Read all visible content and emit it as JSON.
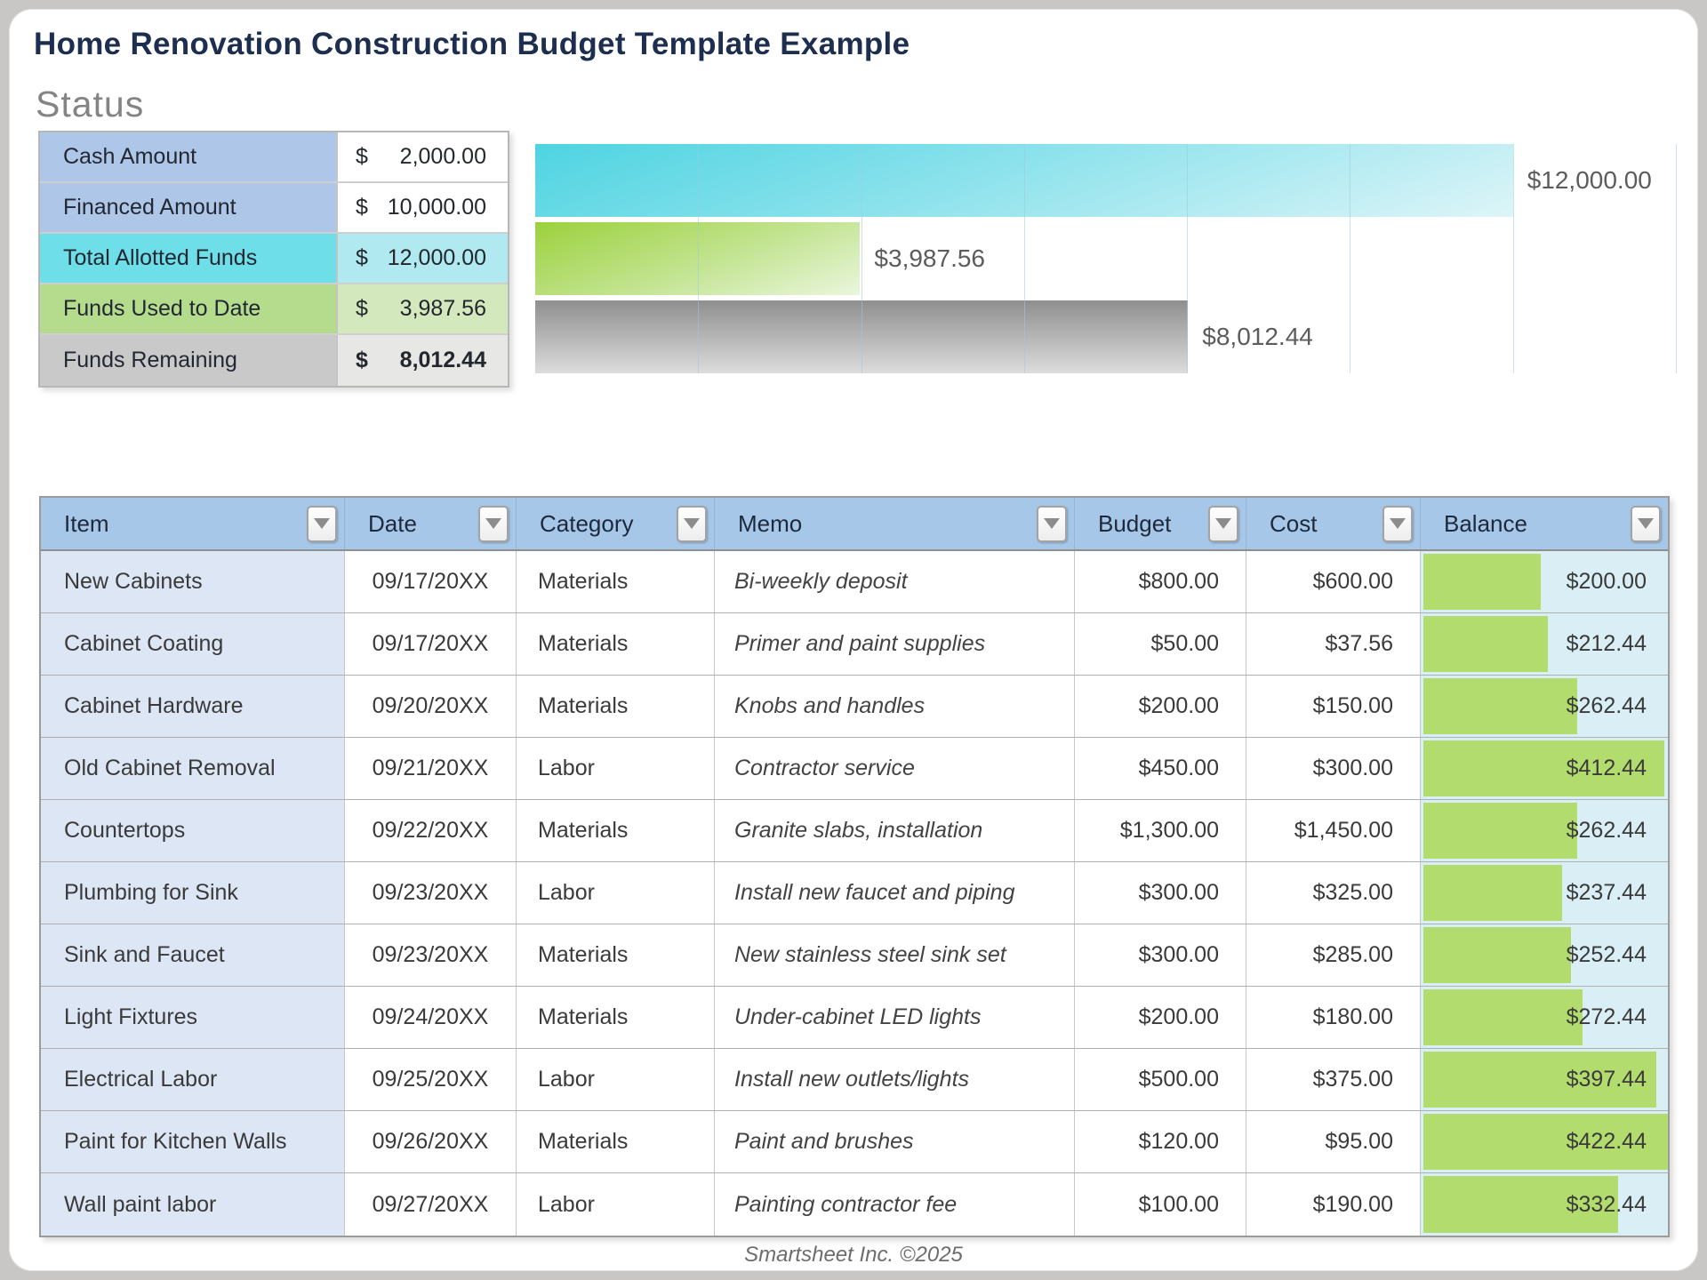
{
  "page": {
    "title": "Home Renovation Construction Budget Template Example",
    "footer": "Smartsheet Inc. ©2025"
  },
  "status": {
    "heading": "Status",
    "rows": [
      {
        "label": "Cash Amount",
        "currency": "$",
        "amount": "2,000.00"
      },
      {
        "label": "Financed Amount",
        "currency": "$",
        "amount": "10,000.00"
      },
      {
        "label": "Total Allotted Funds",
        "currency": "$",
        "amount": "12,000.00"
      },
      {
        "label": "Funds Used to Date",
        "currency": "$",
        "amount": "3,987.56"
      },
      {
        "label": "Funds Remaining",
        "currency": "$",
        "amount": "8,012.44"
      }
    ]
  },
  "chart_data": {
    "type": "bar",
    "orientation": "horizontal",
    "categories": [
      "Total Allotted Funds",
      "Funds Used to Date",
      "Funds Remaining"
    ],
    "values": [
      12000,
      3987.56,
      8012.44
    ],
    "labels": [
      "$12,000.00",
      "$3,987.56",
      "$8,012.44"
    ],
    "bar_colors": [
      "#4ed4e1",
      "#9cd13c",
      "#8f8f8f"
    ],
    "xlim": [
      0,
      14000
    ],
    "gridline_interval": 2000,
    "grid": true,
    "legend": false,
    "title": "",
    "xlabel": "",
    "ylabel": ""
  },
  "table": {
    "columns": [
      "Item",
      "Date",
      "Category",
      "Memo",
      "Budget",
      "Cost",
      "Balance"
    ],
    "rows": [
      {
        "item": "New Cabinets",
        "date": "09/17/20XX",
        "category": "Materials",
        "memo": "Bi-weekly deposit",
        "budget": "$800.00",
        "cost": "$600.00",
        "balance": "$200.00",
        "balance_value": 200.0
      },
      {
        "item": "Cabinet Coating",
        "date": "09/17/20XX",
        "category": "Materials",
        "memo": "Primer and paint supplies",
        "budget": "$50.00",
        "cost": "$37.56",
        "balance": "$212.44",
        "balance_value": 212.44
      },
      {
        "item": "Cabinet Hardware",
        "date": "09/20/20XX",
        "category": "Materials",
        "memo": "Knobs and handles",
        "budget": "$200.00",
        "cost": "$150.00",
        "balance": "$262.44",
        "balance_value": 262.44
      },
      {
        "item": "Old Cabinet Removal",
        "date": "09/21/20XX",
        "category": "Labor",
        "memo": "Contractor service",
        "budget": "$450.00",
        "cost": "$300.00",
        "balance": "$412.44",
        "balance_value": 412.44
      },
      {
        "item": "Countertops",
        "date": "09/22/20XX",
        "category": "Materials",
        "memo": "Granite slabs, installation",
        "budget": "$1,300.00",
        "cost": "$1,450.00",
        "balance": "$262.44",
        "balance_value": 262.44
      },
      {
        "item": "Plumbing for Sink",
        "date": "09/23/20XX",
        "category": "Labor",
        "memo": "Install new faucet and piping",
        "budget": "$300.00",
        "cost": "$325.00",
        "balance": "$237.44",
        "balance_value": 237.44
      },
      {
        "item": "Sink and Faucet",
        "date": "09/23/20XX",
        "category": "Materials",
        "memo": "New stainless steel sink set",
        "budget": "$300.00",
        "cost": "$285.00",
        "balance": "$252.44",
        "balance_value": 252.44
      },
      {
        "item": "Light Fixtures",
        "date": "09/24/20XX",
        "category": "Materials",
        "memo": "Under-cabinet LED lights",
        "budget": "$200.00",
        "cost": "$180.00",
        "balance": "$272.44",
        "balance_value": 272.44
      },
      {
        "item": "Electrical Labor",
        "date": "09/25/20XX",
        "category": "Labor",
        "memo": "Install new outlets/lights",
        "budget": "$500.00",
        "cost": "$375.00",
        "balance": "$397.44",
        "balance_value": 397.44
      },
      {
        "item": "Paint for Kitchen Walls",
        "date": "09/26/20XX",
        "category": "Materials",
        "memo": "Paint and brushes",
        "budget": "$120.00",
        "cost": "$95.00",
        "balance": "$422.44",
        "balance_value": 422.44
      },
      {
        "item": "Wall paint labor",
        "date": "09/27/20XX",
        "category": "Labor",
        "memo": "Painting contractor fee",
        "budget": "$100.00",
        "cost": "$190.00",
        "balance": "$332.44",
        "balance_value": 332.44
      }
    ]
  },
  "colors": {
    "header_blue": "#a7c7e9",
    "item_column_blue": "#dce6f5",
    "balance_column_bg": "#d9eef5",
    "balance_data_bar_green": "#b2dc6d",
    "status_label_blue": "#aec6e8",
    "status_allotted_cyan": "#6edee8",
    "status_used_green": "#b5dc8c",
    "status_remaining_gray": "#c9c9c9",
    "title_navy": "#1d2e4e"
  }
}
